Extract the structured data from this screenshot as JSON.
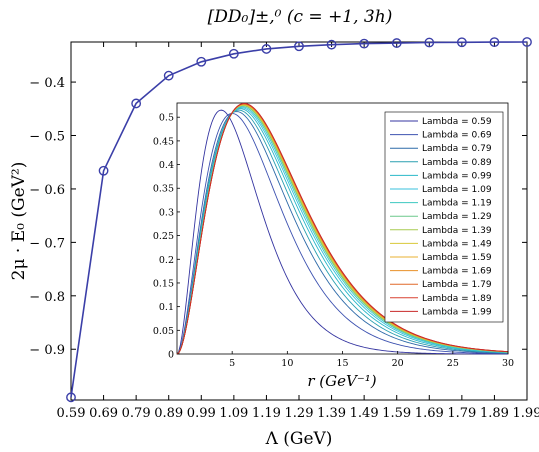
{
  "chart_data": [
    {
      "type": "line",
      "title": "[DD₀]±,⁰ (c = +1, 3h)",
      "xlabel": "Λ (GeV)",
      "ylabel": "2μ · E₀ (GeV²)",
      "xlim": [
        0.59,
        1.99
      ],
      "ylim": [
        -0.995,
        -0.325
      ],
      "x_tick_labels": [
        "0.59",
        "0.69",
        "0.79",
        "0.89",
        "0.99",
        "1.09",
        "1.19",
        "1.29",
        "1.39",
        "1.49",
        "1.59",
        "1.69",
        "1.79",
        "1.89",
        "1.99"
      ],
      "y_ticks": [
        -0.4,
        -0.5,
        -0.6,
        -0.7,
        -0.8,
        -0.9
      ],
      "y_tick_labels": [
        "− 0.4",
        "− 0.5",
        "− 0.6",
        "− 0.7",
        "− 0.8",
        "− 0.9"
      ],
      "marker": "circle",
      "color": "#3b3fa8",
      "grid": false,
      "series": [
        {
          "x": [
            0.59,
            0.69,
            0.79,
            0.89,
            0.99,
            1.09,
            1.19,
            1.29,
            1.39,
            1.49,
            1.59,
            1.69,
            1.79,
            1.89,
            1.99
          ],
          "y": [
            -0.99,
            -0.566,
            -0.44,
            -0.388,
            -0.362,
            -0.347,
            -0.338,
            -0.333,
            -0.33,
            -0.328,
            -0.327,
            -0.326,
            -0.3255,
            -0.3252,
            -0.325
          ]
        }
      ]
    },
    {
      "type": "line",
      "title": "",
      "xlabel": "r (GeV⁻¹)",
      "ylabel": "",
      "xlim": [
        0,
        30
      ],
      "ylim": [
        0,
        0.53
      ],
      "x_ticks": [
        5,
        10,
        15,
        20,
        25,
        30
      ],
      "y_ticks": [
        0,
        0.05,
        0.1,
        0.15,
        0.2,
        0.25,
        0.3,
        0.35,
        0.4,
        0.45,
        0.5
      ],
      "y_tick_labels": [
        "0",
        "0.05",
        "0.1",
        "0.15",
        "0.2",
        "0.25",
        "0.3",
        "0.35",
        "0.4",
        "0.45",
        "0.5"
      ],
      "legend": "top-right",
      "series": [
        {
          "name": "Lambda = 0.59",
          "peak_r": 4.0,
          "peak_value": 0.515,
          "color": "#3434a0"
        },
        {
          "name": "Lambda = 0.69",
          "peak_r": 5.0,
          "peak_value": 0.508,
          "color": "#3d52b0"
        },
        {
          "name": "Lambda = 0.79",
          "peak_r": 5.4,
          "peak_value": 0.512,
          "color": "#2d6aa8"
        },
        {
          "name": "Lambda = 0.89",
          "peak_r": 5.6,
          "peak_value": 0.515,
          "color": "#2a9fb0"
        },
        {
          "name": "Lambda = 0.99",
          "peak_r": 5.75,
          "peak_value": 0.518,
          "color": "#2ab8c8"
        },
        {
          "name": "Lambda = 1.09",
          "peak_r": 5.85,
          "peak_value": 0.52,
          "color": "#38c0dc"
        },
        {
          "name": "Lambda = 1.19",
          "peak_r": 5.92,
          "peak_value": 0.522,
          "color": "#3cc8c0"
        },
        {
          "name": "Lambda = 1.29",
          "peak_r": 5.97,
          "peak_value": 0.524,
          "color": "#6cc88c"
        },
        {
          "name": "Lambda = 1.39",
          "peak_r": 6.0,
          "peak_value": 0.525,
          "color": "#a8cc50"
        },
        {
          "name": "Lambda = 1.49",
          "peak_r": 6.03,
          "peak_value": 0.526,
          "color": "#d8c838"
        },
        {
          "name": "Lambda = 1.59",
          "peak_r": 6.05,
          "peak_value": 0.527,
          "color": "#e8b030"
        },
        {
          "name": "Lambda = 1.69",
          "peak_r": 6.07,
          "peak_value": 0.528,
          "color": "#e89028"
        },
        {
          "name": "Lambda = 1.79",
          "peak_r": 6.08,
          "peak_value": 0.528,
          "color": "#e06828"
        },
        {
          "name": "Lambda = 1.89",
          "peak_r": 6.09,
          "peak_value": 0.529,
          "color": "#d84030"
        },
        {
          "name": "Lambda = 1.99",
          "peak_r": 6.1,
          "peak_value": 0.529,
          "color": "#c82828"
        }
      ]
    }
  ]
}
